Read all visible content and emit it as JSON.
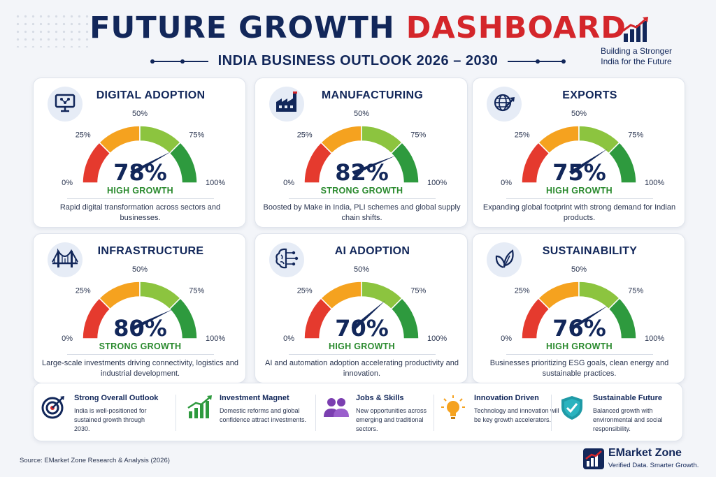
{
  "header": {
    "title_part1": "FUTURE GROWTH",
    "title_part2": "DASHBOARD",
    "subtitle": "INDIA BUSINESS OUTLOOK 2026 – 2030",
    "tagline_line1": "Building a Stronger",
    "tagline_line2": "India for the Future"
  },
  "colors": {
    "navy": "#12275a",
    "red": "#d4262b",
    "gauge_red": "#e53a2e",
    "gauge_orange": "#f5a21f",
    "gauge_lightgreen": "#8cc43f",
    "gauge_green": "#2e9a3e",
    "status_green": "#2a8a2e"
  },
  "chart_data": [
    {
      "type": "gauge",
      "title": "DIGITAL ADOPTION",
      "icon": "monitor-network-icon",
      "value": 78,
      "value_label": "78%",
      "status": "HIGH GROWTH",
      "description": "Rapid digital transformation across sectors and businesses.",
      "range": [
        0,
        100
      ],
      "tick_labels": [
        "0%",
        "25%",
        "50%",
        "75%",
        "100%"
      ]
    },
    {
      "type": "gauge",
      "title": "MANUFACTURING",
      "icon": "factory-icon",
      "value": 82,
      "value_label": "82%",
      "status": "STRONG GROWTH",
      "description": "Boosted by Make in India, PLI schemes and global supply chain shifts.",
      "range": [
        0,
        100
      ],
      "tick_labels": [
        "0%",
        "25%",
        "50%",
        "75%",
        "100%"
      ]
    },
    {
      "type": "gauge",
      "title": "EXPORTS",
      "icon": "globe-arrow-icon",
      "value": 75,
      "value_label": "75%",
      "status": "HIGH GROWTH",
      "description": "Expanding global footprint with strong demand for Indian products.",
      "range": [
        0,
        100
      ],
      "tick_labels": [
        "0%",
        "25%",
        "50%",
        "75%",
        "100%"
      ]
    },
    {
      "type": "gauge",
      "title": "INFRASTRUCTURE",
      "icon": "bridge-icon",
      "value": 80,
      "value_label": "80%",
      "status": "STRONG GROWTH",
      "description": "Large-scale investments driving connectivity, logistics and industrial development.",
      "range": [
        0,
        100
      ],
      "tick_labels": [
        "0%",
        "25%",
        "50%",
        "75%",
        "100%"
      ]
    },
    {
      "type": "gauge",
      "title": "AI ADOPTION",
      "icon": "brain-circuit-icon",
      "value": 70,
      "value_label": "70%",
      "status": "HIGH GROWTH",
      "description": "AI and automation adoption accelerating productivity and innovation.",
      "range": [
        0,
        100
      ],
      "tick_labels": [
        "0%",
        "25%",
        "50%",
        "75%",
        "100%"
      ]
    },
    {
      "type": "gauge",
      "title": "SUSTAINABILITY",
      "icon": "leaf-icon",
      "value": 76,
      "value_label": "76%",
      "status": "HIGH GROWTH",
      "description": "Businesses prioritizing ESG goals, clean energy and sustainable practices.",
      "range": [
        0,
        100
      ],
      "tick_labels": [
        "0%",
        "25%",
        "50%",
        "75%",
        "100%"
      ]
    }
  ],
  "highlights": [
    {
      "title": "Strong Overall Outlook",
      "text": "India is well-positioned for sustained growth through 2030.",
      "icon": "target-icon"
    },
    {
      "title": "Investment Magnet",
      "text": "Domestic reforms and global confidence attract investments.",
      "icon": "bar-growth-icon"
    },
    {
      "title": "Jobs & Skills",
      "text": "New opportunities across emerging and traditional sectors.",
      "icon": "people-icon"
    },
    {
      "title": "Innovation Driven",
      "text": "Technology and innovation will be key growth accelerators.",
      "icon": "lightbulb-icon"
    },
    {
      "title": "Sustainable Future",
      "text": "Balanced growth with environmental and social responsibility.",
      "icon": "shield-check-icon"
    }
  ],
  "footer": {
    "source": "Source:  EMarket Zone Research & Analysis (2026)",
    "brand_name": "EMarket Zone",
    "brand_tagline": "Verified Data. Smarter Growth."
  }
}
